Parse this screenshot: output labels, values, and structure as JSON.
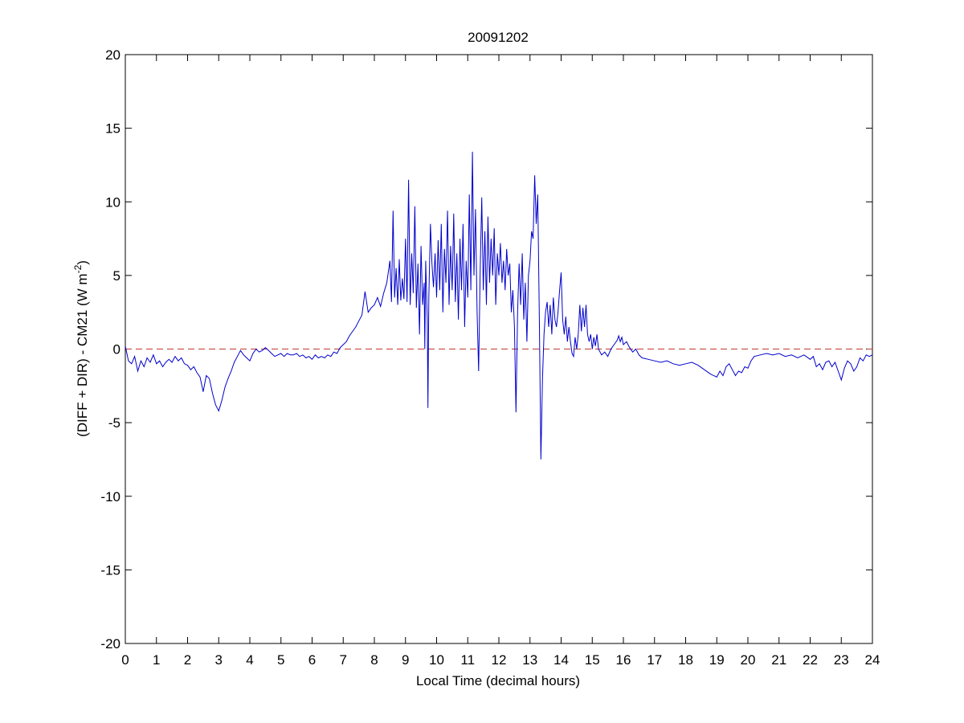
{
  "chart_data": {
    "type": "line",
    "title": "20091202",
    "xlabel": "Local Time (decimal hours)",
    "ylabel": {
      "main": "(DIFF + DIR) - CM21 (W m",
      "superscript": "-2",
      "close": ")"
    },
    "xlim": [
      0,
      24
    ],
    "ylim": [
      -20,
      20
    ],
    "xticks": [
      0,
      1,
      2,
      3,
      4,
      5,
      6,
      7,
      8,
      9,
      10,
      11,
      12,
      13,
      14,
      15,
      16,
      17,
      18,
      19,
      20,
      21,
      22,
      23,
      24
    ],
    "yticks": [
      20,
      15,
      10,
      5,
      0,
      -5,
      -10,
      -15,
      -20
    ],
    "grid": false,
    "reference_line": {
      "y": 0,
      "color": "#c0392b",
      "style": "dashed"
    },
    "series": [
      {
        "color": "#0000cc",
        "points": [
          [
            0,
            0.2
          ],
          [
            0.1,
            -0.8
          ],
          [
            0.2,
            -1.0
          ],
          [
            0.3,
            -0.5
          ],
          [
            0.4,
            -1.5
          ],
          [
            0.5,
            -0.8
          ],
          [
            0.6,
            -1.2
          ],
          [
            0.7,
            -0.6
          ],
          [
            0.8,
            -0.9
          ],
          [
            0.9,
            -0.4
          ],
          [
            1.0,
            -1.0
          ],
          [
            1.1,
            -0.8
          ],
          [
            1.2,
            -1.2
          ],
          [
            1.3,
            -0.9
          ],
          [
            1.4,
            -0.7
          ],
          [
            1.5,
            -0.9
          ],
          [
            1.6,
            -0.5
          ],
          [
            1.7,
            -0.8
          ],
          [
            1.8,
            -0.6
          ],
          [
            1.9,
            -1.0
          ],
          [
            2.0,
            -1.1
          ],
          [
            2.1,
            -1.4
          ],
          [
            2.2,
            -1.2
          ],
          [
            2.3,
            -1.6
          ],
          [
            2.4,
            -1.9
          ],
          [
            2.5,
            -2.9
          ],
          [
            2.6,
            -1.8
          ],
          [
            2.7,
            -2.0
          ],
          [
            2.8,
            -3.0
          ],
          [
            2.9,
            -3.8
          ],
          [
            3.0,
            -4.2
          ],
          [
            3.1,
            -3.5
          ],
          [
            3.2,
            -2.6
          ],
          [
            3.3,
            -2.0
          ],
          [
            3.4,
            -1.5
          ],
          [
            3.5,
            -0.9
          ],
          [
            3.6,
            -0.5
          ],
          [
            3.7,
            -0.1
          ],
          [
            3.8,
            -0.4
          ],
          [
            3.9,
            -0.6
          ],
          [
            4.0,
            -0.8
          ],
          [
            4.1,
            -0.3
          ],
          [
            4.2,
            0.0
          ],
          [
            4.3,
            -0.2
          ],
          [
            4.4,
            -0.1
          ],
          [
            4.5,
            0.1
          ],
          [
            4.6,
            -0.1
          ],
          [
            4.7,
            -0.3
          ],
          [
            4.8,
            -0.5
          ],
          [
            4.9,
            -0.4
          ],
          [
            5.0,
            -0.3
          ],
          [
            5.1,
            -0.5
          ],
          [
            5.2,
            -0.3
          ],
          [
            5.3,
            -0.4
          ],
          [
            5.4,
            -0.4
          ],
          [
            5.5,
            -0.3
          ],
          [
            5.6,
            -0.5
          ],
          [
            5.7,
            -0.4
          ],
          [
            5.8,
            -0.6
          ],
          [
            5.9,
            -0.5
          ],
          [
            6.0,
            -0.7
          ],
          [
            6.1,
            -0.4
          ],
          [
            6.2,
            -0.6
          ],
          [
            6.3,
            -0.5
          ],
          [
            6.4,
            -0.6
          ],
          [
            6.5,
            -0.4
          ],
          [
            6.6,
            -0.5
          ],
          [
            6.7,
            -0.2
          ],
          [
            6.8,
            -0.3
          ],
          [
            6.9,
            0.1
          ],
          [
            7.0,
            0.3
          ],
          [
            7.1,
            0.5
          ],
          [
            7.2,
            0.9
          ],
          [
            7.3,
            1.2
          ],
          [
            7.4,
            1.5
          ],
          [
            7.5,
            1.9
          ],
          [
            7.6,
            2.3
          ],
          [
            7.7,
            3.9
          ],
          [
            7.8,
            2.5
          ],
          [
            7.9,
            2.8
          ],
          [
            8.0,
            3.0
          ],
          [
            8.1,
            3.5
          ],
          [
            8.2,
            2.9
          ],
          [
            8.3,
            3.8
          ],
          [
            8.4,
            4.5
          ],
          [
            8.5,
            6.0
          ],
          [
            8.55,
            3.2
          ],
          [
            8.6,
            9.4
          ],
          [
            8.65,
            3.5
          ],
          [
            8.7,
            5.5
          ],
          [
            8.75,
            3.0
          ],
          [
            8.8,
            6.1
          ],
          [
            8.85,
            3.3
          ],
          [
            8.9,
            4.8
          ],
          [
            8.95,
            3.4
          ],
          [
            9.0,
            7.5
          ],
          [
            9.05,
            3.2
          ],
          [
            9.1,
            11.5
          ],
          [
            9.15,
            3.0
          ],
          [
            9.2,
            6.5
          ],
          [
            9.25,
            3.8
          ],
          [
            9.3,
            9.7
          ],
          [
            9.35,
            2.8
          ],
          [
            9.4,
            5.8
          ],
          [
            9.45,
            1.0
          ],
          [
            9.5,
            7.0
          ],
          [
            9.55,
            3.0
          ],
          [
            9.6,
            4.5
          ],
          [
            9.62,
            0.0
          ],
          [
            9.65,
            6.0
          ],
          [
            9.7,
            2.0
          ],
          [
            9.72,
            -4.0
          ],
          [
            9.75,
            3.5
          ],
          [
            9.8,
            8.5
          ],
          [
            9.85,
            5.8
          ],
          [
            9.9,
            4.2
          ],
          [
            9.95,
            6.5
          ],
          [
            10.0,
            3.5
          ],
          [
            10.05,
            7.4
          ],
          [
            10.1,
            4.0
          ],
          [
            10.15,
            8.5
          ],
          [
            10.2,
            2.5
          ],
          [
            10.25,
            6.8
          ],
          [
            10.3,
            4.5
          ],
          [
            10.35,
            9.4
          ],
          [
            10.4,
            3.0
          ],
          [
            10.45,
            7.0
          ],
          [
            10.5,
            4.0
          ],
          [
            10.55,
            9.2
          ],
          [
            10.6,
            3.2
          ],
          [
            10.65,
            6.5
          ],
          [
            10.7,
            2.0
          ],
          [
            10.75,
            7.5
          ],
          [
            10.8,
            4.0
          ],
          [
            10.85,
            8.5
          ],
          [
            10.9,
            1.5
          ],
          [
            10.95,
            6.0
          ],
          [
            11.0,
            3.5
          ],
          [
            11.05,
            10.5
          ],
          [
            11.1,
            4.0
          ],
          [
            11.15,
            13.4
          ],
          [
            11.2,
            5.0
          ],
          [
            11.25,
            9.5
          ],
          [
            11.3,
            2.5
          ],
          [
            11.35,
            -1.5
          ],
          [
            11.4,
            5.5
          ],
          [
            11.45,
            10.3
          ],
          [
            11.5,
            4.0
          ],
          [
            11.55,
            8.0
          ],
          [
            11.6,
            3.0
          ],
          [
            11.65,
            9.0
          ],
          [
            11.7,
            4.5
          ],
          [
            11.75,
            7.5
          ],
          [
            11.8,
            5.0
          ],
          [
            11.85,
            8.2
          ],
          [
            11.9,
            3.0
          ],
          [
            11.95,
            6.5
          ],
          [
            12.0,
            5.0
          ],
          [
            12.05,
            7.2
          ],
          [
            12.1,
            4.5
          ],
          [
            12.15,
            6.0
          ],
          [
            12.2,
            4.0
          ],
          [
            12.25,
            6.8
          ],
          [
            12.3,
            5.0
          ],
          [
            12.35,
            5.8
          ],
          [
            12.4,
            2.5
          ],
          [
            12.45,
            4.0
          ],
          [
            12.5,
            1.5
          ],
          [
            12.55,
            -4.3
          ],
          [
            12.6,
            2.5
          ],
          [
            12.65,
            5.8
          ],
          [
            12.7,
            3.0
          ],
          [
            12.75,
            6.5
          ],
          [
            12.8,
            2.0
          ],
          [
            12.85,
            4.5
          ],
          [
            12.9,
            0.5
          ],
          [
            12.95,
            5.0
          ],
          [
            13.0,
            6.0
          ],
          [
            13.05,
            8.0
          ],
          [
            13.1,
            7.5
          ],
          [
            13.15,
            11.8
          ],
          [
            13.2,
            8.5
          ],
          [
            13.25,
            10.5
          ],
          [
            13.3,
            2.0
          ],
          [
            13.35,
            -7.5
          ],
          [
            13.4,
            -2.0
          ],
          [
            13.45,
            1.0
          ],
          [
            13.5,
            2.5
          ],
          [
            13.55,
            3.2
          ],
          [
            13.6,
            1.5
          ],
          [
            13.65,
            3.0
          ],
          [
            13.7,
            1.0
          ],
          [
            13.75,
            3.5
          ],
          [
            13.8,
            2.0
          ],
          [
            13.85,
            1.5
          ],
          [
            13.9,
            2.5
          ],
          [
            13.95,
            4.0
          ],
          [
            14.0,
            5.2
          ],
          [
            14.05,
            2.0
          ],
          [
            14.1,
            1.0
          ],
          [
            14.15,
            2.2
          ],
          [
            14.2,
            0.5
          ],
          [
            14.25,
            1.5
          ],
          [
            14.3,
            0.5
          ],
          [
            14.35,
            -0.3
          ],
          [
            14.4,
            -0.5
          ],
          [
            14.45,
            0.8
          ],
          [
            14.5,
            0.0
          ],
          [
            14.55,
            1.0
          ],
          [
            14.6,
            3.0
          ],
          [
            14.65,
            1.2
          ],
          [
            14.7,
            2.8
          ],
          [
            14.75,
            1.5
          ],
          [
            14.8,
            3.0
          ],
          [
            14.85,
            1.0
          ],
          [
            14.9,
            0.5
          ],
          [
            14.95,
            1.0
          ],
          [
            15.0,
            0.0
          ],
          [
            15.05,
            0.8
          ],
          [
            15.1,
            0.2
          ],
          [
            15.15,
            1.0
          ],
          [
            15.2,
            0.0
          ],
          [
            15.3,
            -0.4
          ],
          [
            15.4,
            -0.2
          ],
          [
            15.5,
            -0.5
          ],
          [
            15.6,
            0.0
          ],
          [
            15.7,
            0.3
          ],
          [
            15.8,
            0.6
          ],
          [
            15.85,
            0.9
          ],
          [
            15.9,
            0.5
          ],
          [
            15.95,
            0.8
          ],
          [
            16.0,
            0.3
          ],
          [
            16.1,
            0.5
          ],
          [
            16.2,
            0.1
          ],
          [
            16.3,
            -0.2
          ],
          [
            16.4,
            0.0
          ],
          [
            16.5,
            -0.4
          ],
          [
            16.6,
            -0.6
          ],
          [
            16.8,
            -0.7
          ],
          [
            17.0,
            -0.8
          ],
          [
            17.2,
            -0.9
          ],
          [
            17.4,
            -0.8
          ],
          [
            17.6,
            -1.0
          ],
          [
            17.8,
            -1.1
          ],
          [
            18.0,
            -1.0
          ],
          [
            18.2,
            -0.9
          ],
          [
            18.4,
            -1.1
          ],
          [
            18.6,
            -1.4
          ],
          [
            18.8,
            -1.7
          ],
          [
            19.0,
            -1.9
          ],
          [
            19.1,
            -1.5
          ],
          [
            19.2,
            -1.8
          ],
          [
            19.3,
            -1.2
          ],
          [
            19.4,
            -1.0
          ],
          [
            19.5,
            -1.4
          ],
          [
            19.6,
            -1.8
          ],
          [
            19.7,
            -1.5
          ],
          [
            19.8,
            -1.6
          ],
          [
            19.9,
            -1.2
          ],
          [
            20.0,
            -1.3
          ],
          [
            20.1,
            -0.8
          ],
          [
            20.2,
            -0.5
          ],
          [
            20.4,
            -0.4
          ],
          [
            20.6,
            -0.3
          ],
          [
            20.8,
            -0.4
          ],
          [
            21.0,
            -0.3
          ],
          [
            21.2,
            -0.5
          ],
          [
            21.4,
            -0.4
          ],
          [
            21.6,
            -0.6
          ],
          [
            21.8,
            -0.4
          ],
          [
            22.0,
            -0.7
          ],
          [
            22.1,
            -0.5
          ],
          [
            22.2,
            -1.2
          ],
          [
            22.3,
            -1.0
          ],
          [
            22.4,
            -1.4
          ],
          [
            22.5,
            -0.9
          ],
          [
            22.6,
            -0.8
          ],
          [
            22.7,
            -1.2
          ],
          [
            22.8,
            -0.9
          ],
          [
            22.9,
            -1.5
          ],
          [
            23.0,
            -2.1
          ],
          [
            23.1,
            -1.3
          ],
          [
            23.2,
            -0.8
          ],
          [
            23.3,
            -1.0
          ],
          [
            23.4,
            -1.5
          ],
          [
            23.5,
            -1.2
          ],
          [
            23.6,
            -0.6
          ],
          [
            23.7,
            -0.8
          ],
          [
            23.8,
            -0.4
          ],
          [
            23.9,
            -0.5
          ],
          [
            24.0,
            -0.4
          ]
        ]
      }
    ]
  }
}
